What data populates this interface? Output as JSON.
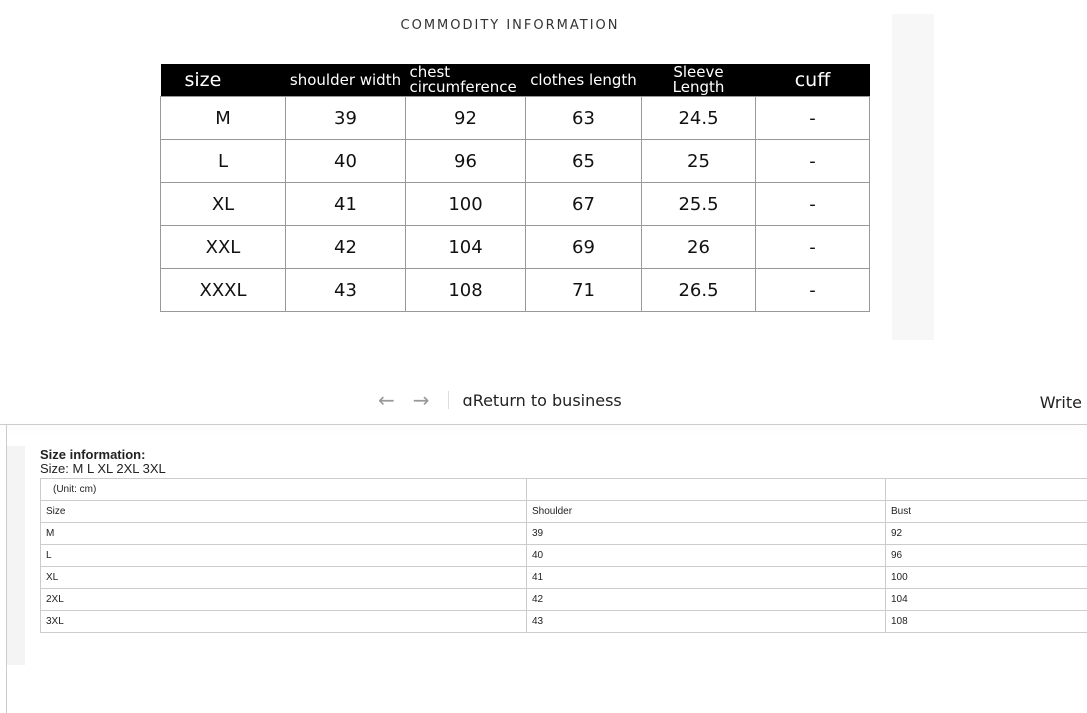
{
  "title": "COMMODITY INFORMATION",
  "size_chart": {
    "headers": [
      "size",
      "shoulder width",
      "chest circumference",
      "clothes length",
      "Sleeve Length",
      "cuff"
    ],
    "rows": [
      [
        "M",
        "39",
        "92",
        "63",
        "24.5",
        "-"
      ],
      [
        "L",
        "40",
        "96",
        "65",
        "25",
        "-"
      ],
      [
        "XL",
        "41",
        "100",
        "67",
        "25.5",
        "-"
      ],
      [
        "XXL",
        "42",
        "104",
        "69",
        "26",
        "-"
      ],
      [
        "XXXL",
        "43",
        "108",
        "71",
        "26.5",
        "-"
      ]
    ]
  },
  "nav": {
    "back_icon": "arrow-left-icon",
    "forward_icon": "arrow-right-icon",
    "return_label": "ɑReturn to business",
    "write_label": "Write"
  },
  "size_info": {
    "heading": "Size information:",
    "sizes": "Size: M L XL 2XL 3XL",
    "unit": "(Unit: cm)",
    "headers": [
      "Size",
      "Shoulder",
      "Bust"
    ],
    "rows": [
      [
        "M",
        "39",
        "92"
      ],
      [
        "L",
        "40",
        "96"
      ],
      [
        "XL",
        "41",
        "100"
      ],
      [
        "2XL",
        "42",
        "104"
      ],
      [
        "3XL",
        "43",
        "108"
      ]
    ]
  }
}
